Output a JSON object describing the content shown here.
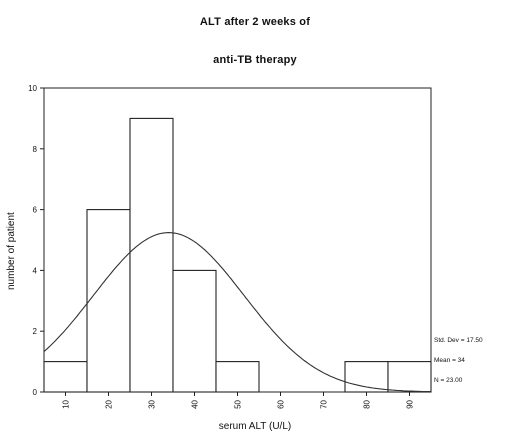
{
  "chart_data": {
    "type": "bar",
    "title": "ALT after 2 weeks of",
    "subtitle": "anti-TB therapy",
    "xlabel": "serum ALT (U/L)",
    "ylabel": "number of patient",
    "x_ticks": [
      "10",
      "20",
      "30",
      "40",
      "50",
      "60",
      "70",
      "80",
      "90"
    ],
    "y_ticks": [
      0,
      2,
      4,
      6,
      8,
      10
    ],
    "xlim": [
      5,
      95
    ],
    "ylim": [
      0,
      10
    ],
    "bins": [
      {
        "center": 10,
        "value": 1
      },
      {
        "center": 20,
        "value": 6
      },
      {
        "center": 30,
        "value": 9
      },
      {
        "center": 40,
        "value": 4
      },
      {
        "center": 50,
        "value": 1
      },
      {
        "center": 60,
        "value": 0
      },
      {
        "center": 70,
        "value": 0
      },
      {
        "center": 80,
        "value": 1
      },
      {
        "center": 90,
        "value": 1
      }
    ],
    "bin_width": 10,
    "normal_curve": {
      "mean": 34,
      "std_dev": 17.5,
      "n": 23
    },
    "stats": [
      "Std. Dev = 17.50",
      "Mean = 34",
      "N = 23.00"
    ]
  }
}
